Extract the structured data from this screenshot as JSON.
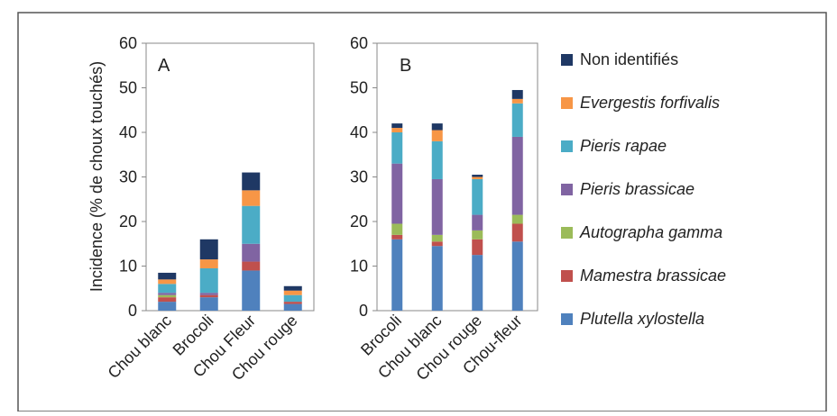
{
  "colors": {
    "Plutella xylostella": "#4f81bd",
    "Mamestra brassicae": "#c0504d",
    "Autographa gamma": "#9bbb59",
    "Pieris brassicae": "#8064a2",
    "Pieris rapae": "#4bacc6",
    "Evergestis forfivalis": "#f79646",
    "Non identifiés": "#1f3864"
  },
  "legend": [
    {
      "name": "Non identifiés",
      "italic": false
    },
    {
      "name": "Evergestis forfivalis",
      "italic": true
    },
    {
      "name": "Pieris rapae",
      "italic": true
    },
    {
      "name": "Pieris brassicae",
      "italic": true
    },
    {
      "name": "Autographa gamma",
      "italic": true
    },
    {
      "name": "Mamestra brassicae",
      "italic": true
    },
    {
      "name": "Plutella xylostella",
      "italic": true
    }
  ],
  "chart_data": [
    {
      "type": "bar",
      "stacked": true,
      "panel_label": "A",
      "ylabel": "Incidence (% de choux touchés)",
      "ylim": [
        0,
        60
      ],
      "yticks": [
        0,
        10,
        20,
        30,
        40,
        50,
        60
      ],
      "categories": [
        "Chou blanc",
        "Brocoli",
        "Chou Fleur",
        "Chou rouge"
      ],
      "series": [
        {
          "name": "Plutella xylostella",
          "values": [
            2,
            3,
            9,
            1.5
          ]
        },
        {
          "name": "Mamestra brassicae",
          "values": [
            1,
            0.5,
            2,
            0.5
          ]
        },
        {
          "name": "Autographa gamma",
          "values": [
            0.5,
            0,
            0,
            0
          ]
        },
        {
          "name": "Pieris brassicae",
          "values": [
            0.5,
            0.5,
            4,
            0
          ]
        },
        {
          "name": "Pieris rapae",
          "values": [
            2,
            5.5,
            8.5,
            1.5
          ]
        },
        {
          "name": "Evergestis forfivalis",
          "values": [
            1,
            2,
            3.5,
            1
          ]
        },
        {
          "name": "Non identifiés",
          "values": [
            1.5,
            4.5,
            4,
            1
          ]
        }
      ]
    },
    {
      "type": "bar",
      "stacked": true,
      "panel_label": "B",
      "ylim": [
        0,
        60
      ],
      "yticks": [
        0,
        10,
        20,
        30,
        40,
        50,
        60
      ],
      "categories": [
        "Brocoli",
        "Chou blanc",
        "Chou rouge",
        "Chou-fleur"
      ],
      "series": [
        {
          "name": "Plutella xylostella",
          "values": [
            16,
            14.5,
            12.5,
            15.5
          ]
        },
        {
          "name": "Mamestra brassicae",
          "values": [
            1,
            1,
            3.5,
            4
          ]
        },
        {
          "name": "Autographa gamma",
          "values": [
            2.5,
            1.5,
            2,
            2
          ]
        },
        {
          "name": "Pieris brassicae",
          "values": [
            13.5,
            12.5,
            3.5,
            17.5
          ]
        },
        {
          "name": "Pieris rapae",
          "values": [
            7,
            8.5,
            8,
            7.5
          ]
        },
        {
          "name": "Evergestis forfivalis",
          "values": [
            1,
            2.5,
            0.5,
            1
          ]
        },
        {
          "name": "Non identifiés",
          "values": [
            1,
            1.5,
            0.5,
            2
          ]
        }
      ]
    }
  ]
}
